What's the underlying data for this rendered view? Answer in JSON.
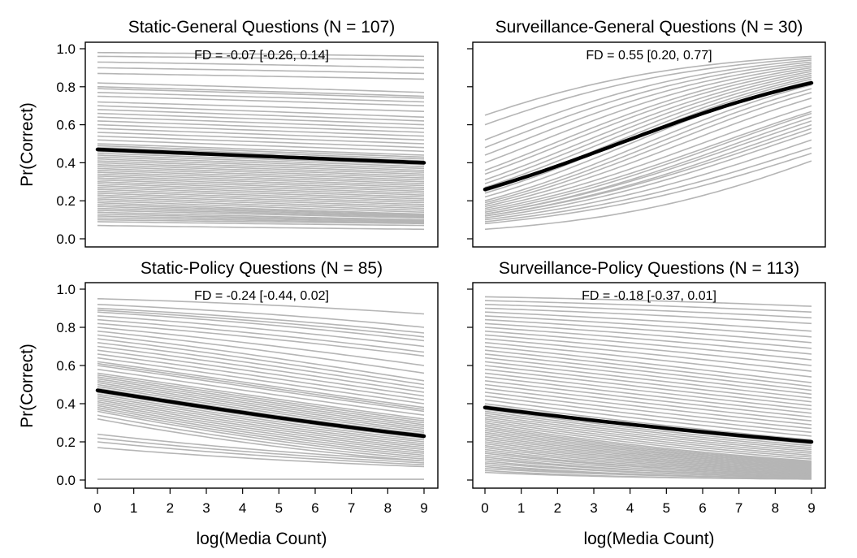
{
  "chart_data": [
    {
      "type": "line",
      "title": "Static-General Questions (N = 107)",
      "annotation": "FD = -0.07 [-0.26, 0.14]",
      "xlabel": "",
      "ylabel": "Pr(Correct)",
      "xlim": [
        0,
        9
      ],
      "ylim": [
        0,
        1
      ],
      "x_ticks": [
        "0",
        "1",
        "2",
        "3",
        "4",
        "5",
        "6",
        "7",
        "8",
        "9"
      ],
      "y_ticks": [
        "0.0",
        "0.2",
        "0.4",
        "0.6",
        "0.8",
        "1.0"
      ],
      "show_x_tick_labels": false,
      "show_y_tick_labels": true,
      "main_series": {
        "x": [
          0,
          9
        ],
        "y": [
          0.47,
          0.4
        ]
      },
      "background_series": {
        "count": 107,
        "start": [
          0.98,
          0.96,
          0.93,
          0.9,
          0.87,
          0.82,
          0.8,
          0.79,
          0.77,
          0.75,
          0.72,
          0.7,
          0.68,
          0.66,
          0.64,
          0.62,
          0.6,
          0.58,
          0.56,
          0.54,
          0.52,
          0.5,
          0.49,
          0.48,
          0.47,
          0.46,
          0.45,
          0.44,
          0.43,
          0.42,
          0.41,
          0.4,
          0.39,
          0.38,
          0.37,
          0.36,
          0.35,
          0.34,
          0.33,
          0.32,
          0.31,
          0.3,
          0.29,
          0.28,
          0.27,
          0.26,
          0.25,
          0.24,
          0.23,
          0.22,
          0.21,
          0.2,
          0.19,
          0.18,
          0.17,
          0.16,
          0.15,
          0.14,
          0.13,
          0.12,
          0.11,
          0.1,
          0.09,
          0.07
        ],
        "end": [
          0.96,
          0.94,
          0.9,
          0.87,
          0.84,
          0.77,
          0.75,
          0.74,
          0.72,
          0.7,
          0.67,
          0.64,
          0.62,
          0.6,
          0.58,
          0.56,
          0.54,
          0.52,
          0.5,
          0.48,
          0.46,
          0.44,
          0.43,
          0.42,
          0.41,
          0.4,
          0.39,
          0.38,
          0.37,
          0.36,
          0.35,
          0.34,
          0.33,
          0.32,
          0.31,
          0.3,
          0.29,
          0.28,
          0.27,
          0.26,
          0.25,
          0.24,
          0.23,
          0.22,
          0.21,
          0.2,
          0.19,
          0.18,
          0.17,
          0.16,
          0.15,
          0.14,
          0.13,
          0.125,
          0.12,
          0.115,
          0.11,
          0.1,
          0.095,
          0.09,
          0.085,
          0.08,
          0.07,
          0.05
        ]
      }
    },
    {
      "type": "line",
      "title": "Surveillance-General Questions (N = 30)",
      "annotation": "FD = 0.55 [0.20, 0.77]",
      "xlabel": "",
      "ylabel": "",
      "xlim": [
        0,
        9
      ],
      "ylim": [
        0,
        1
      ],
      "x_ticks": [
        "0",
        "1",
        "2",
        "3",
        "4",
        "5",
        "6",
        "7",
        "8",
        "9"
      ],
      "y_ticks": [
        "0.0",
        "0.2",
        "0.4",
        "0.6",
        "0.8",
        "1.0"
      ],
      "show_x_tick_labels": false,
      "show_y_tick_labels": false,
      "main_series": {
        "x": [
          0,
          9
        ],
        "y": [
          0.26,
          0.82
        ]
      },
      "background_series": {
        "count": 30,
        "start": [
          0.65,
          0.6,
          0.52,
          0.48,
          0.44,
          0.4,
          0.36,
          0.34,
          0.31,
          0.29,
          0.27,
          0.25,
          0.24,
          0.22,
          0.2,
          0.19,
          0.18,
          0.17,
          0.16,
          0.15,
          0.14,
          0.13,
          0.13,
          0.12,
          0.12,
          0.11,
          0.1,
          0.09,
          0.08,
          0.05
        ],
        "end": [
          0.96,
          0.95,
          0.94,
          0.93,
          0.92,
          0.91,
          0.9,
          0.89,
          0.88,
          0.87,
          0.86,
          0.85,
          0.84,
          0.83,
          0.81,
          0.79,
          0.77,
          0.74,
          0.7,
          0.67,
          0.66,
          0.64,
          0.62,
          0.6,
          0.58,
          0.56,
          0.52,
          0.48,
          0.45,
          0.41
        ]
      }
    },
    {
      "type": "line",
      "title": "Static-Policy Questions (N = 85)",
      "annotation": "FD = -0.24 [-0.44, 0.02]",
      "xlabel": "log(Media Count)",
      "ylabel": "Pr(Correct)",
      "xlim": [
        0,
        9
      ],
      "ylim": [
        0,
        1
      ],
      "x_ticks": [
        "0",
        "1",
        "2",
        "3",
        "4",
        "5",
        "6",
        "7",
        "8",
        "9"
      ],
      "y_ticks": [
        "0.0",
        "0.2",
        "0.4",
        "0.6",
        "0.8",
        "1.0"
      ],
      "show_x_tick_labels": true,
      "show_y_tick_labels": true,
      "main_series": {
        "x": [
          0,
          9
        ],
        "y": [
          0.47,
          0.23
        ]
      },
      "background_series": {
        "count": 85,
        "start": [
          0.95,
          0.92,
          0.9,
          0.89,
          0.88,
          0.86,
          0.84,
          0.82,
          0.8,
          0.78,
          0.76,
          0.74,
          0.72,
          0.7,
          0.68,
          0.66,
          0.64,
          0.62,
          0.61,
          0.6,
          0.58,
          0.56,
          0.55,
          0.54,
          0.53,
          0.52,
          0.51,
          0.5,
          0.49,
          0.48,
          0.47,
          0.46,
          0.45,
          0.44,
          0.43,
          0.42,
          0.41,
          0.4,
          0.39,
          0.38,
          0.37,
          0.36,
          0.34,
          0.32,
          0.24,
          0.22,
          0.2,
          0.17,
          0.0
        ],
        "end": [
          0.87,
          0.8,
          0.77,
          0.75,
          0.73,
          0.7,
          0.67,
          0.65,
          0.6,
          0.56,
          0.52,
          0.5,
          0.48,
          0.46,
          0.44,
          0.42,
          0.4,
          0.38,
          0.37,
          0.36,
          0.34,
          0.32,
          0.31,
          0.3,
          0.29,
          0.28,
          0.27,
          0.26,
          0.25,
          0.24,
          0.23,
          0.22,
          0.21,
          0.2,
          0.19,
          0.18,
          0.17,
          0.16,
          0.15,
          0.14,
          0.13,
          0.12,
          0.11,
          0.1,
          0.1,
          0.09,
          0.08,
          0.07,
          0.0
        ]
      }
    },
    {
      "type": "line",
      "title": "Surveillance-Policy Questions (N = 113)",
      "annotation": "FD = -0.18 [-0.37, 0.01]",
      "xlabel": "log(Media Count)",
      "ylabel": "",
      "xlim": [
        0,
        9
      ],
      "ylim": [
        0,
        1
      ],
      "x_ticks": [
        "0",
        "1",
        "2",
        "3",
        "4",
        "5",
        "6",
        "7",
        "8",
        "9"
      ],
      "y_ticks": [
        "0.0",
        "0.2",
        "0.4",
        "0.6",
        "0.8",
        "1.0"
      ],
      "show_x_tick_labels": true,
      "show_y_tick_labels": false,
      "main_series": {
        "x": [
          0,
          9
        ],
        "y": [
          0.38,
          0.2
        ]
      },
      "background_series": {
        "count": 113,
        "start": [
          0.96,
          0.94,
          0.92,
          0.9,
          0.88,
          0.86,
          0.84,
          0.82,
          0.8,
          0.78,
          0.76,
          0.74,
          0.72,
          0.7,
          0.68,
          0.66,
          0.64,
          0.62,
          0.6,
          0.58,
          0.56,
          0.54,
          0.52,
          0.5,
          0.48,
          0.46,
          0.44,
          0.42,
          0.4,
          0.39,
          0.38,
          0.37,
          0.36,
          0.35,
          0.34,
          0.33,
          0.32,
          0.31,
          0.3,
          0.29,
          0.28,
          0.27,
          0.26,
          0.25,
          0.24,
          0.23,
          0.22,
          0.21,
          0.2,
          0.19,
          0.18,
          0.17,
          0.16,
          0.15,
          0.14,
          0.13,
          0.12,
          0.11,
          0.1,
          0.09,
          0.08,
          0.07,
          0.06,
          0.05,
          0.04
        ],
        "end": [
          0.91,
          0.88,
          0.85,
          0.82,
          0.78,
          0.75,
          0.72,
          0.69,
          0.66,
          0.63,
          0.6,
          0.57,
          0.54,
          0.51,
          0.49,
          0.47,
          0.45,
          0.43,
          0.41,
          0.39,
          0.37,
          0.35,
          0.33,
          0.31,
          0.29,
          0.27,
          0.25,
          0.23,
          0.21,
          0.2,
          0.19,
          0.18,
          0.17,
          0.16,
          0.15,
          0.14,
          0.13,
          0.12,
          0.11,
          0.1,
          0.095,
          0.09,
          0.085,
          0.08,
          0.075,
          0.07,
          0.065,
          0.06,
          0.055,
          0.05,
          0.045,
          0.04,
          0.035,
          0.03,
          0.03,
          0.025,
          0.02,
          0.02,
          0.015,
          0.015,
          0.01,
          0.01,
          0.01,
          0.005,
          0.005
        ]
      }
    }
  ]
}
